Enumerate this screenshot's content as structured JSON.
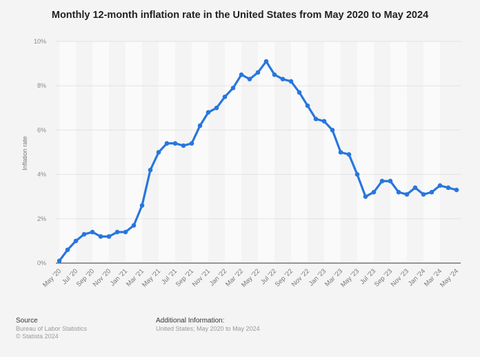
{
  "chart_data": {
    "type": "line",
    "title": "Monthly 12-month inflation rate in the United States from May 2020 to May 2024",
    "xlabel": "",
    "ylabel": "Inflation rate",
    "ylim": [
      0,
      10
    ],
    "y_ticks": [
      "0%",
      "2%",
      "4%",
      "6%",
      "8%",
      "10%"
    ],
    "grid": true,
    "color": "#2876dd",
    "x": [
      "May '20",
      "Jun '20",
      "Jul '20",
      "Aug '20",
      "Sep '20",
      "Oct '20",
      "Nov '20",
      "Dec '20",
      "Jan '21",
      "Feb '21",
      "Mar '21",
      "Apr '21",
      "May '21",
      "Jun '21",
      "Jul '21",
      "Aug '21",
      "Sep '21",
      "Oct '21",
      "Nov '21",
      "Dec '21",
      "Jan '22",
      "Feb '22",
      "Mar '22",
      "Apr '22",
      "May '22",
      "Jun '22",
      "Jul '22",
      "Aug '22",
      "Sep '22",
      "Oct '22",
      "Nov '22",
      "Dec '22",
      "Jan '23",
      "Feb '23",
      "Mar '23",
      "Apr '23",
      "May '23",
      "Jun '23",
      "Jul '23",
      "Aug '23",
      "Sep '23",
      "Oct '23",
      "Nov '23",
      "Dec '23",
      "Jan '24",
      "Feb '24",
      "Mar '24",
      "Apr '24",
      "May '24"
    ],
    "values": [
      0.1,
      0.6,
      1.0,
      1.3,
      1.4,
      1.2,
      1.2,
      1.4,
      1.4,
      1.7,
      2.6,
      4.2,
      5.0,
      5.4,
      5.4,
      5.3,
      5.4,
      6.2,
      6.8,
      7.0,
      7.5,
      7.9,
      8.5,
      8.3,
      8.6,
      9.1,
      8.5,
      8.3,
      8.2,
      7.7,
      7.1,
      6.5,
      6.4,
      6.0,
      5.0,
      4.9,
      4.0,
      3.0,
      3.2,
      3.7,
      3.7,
      3.2,
      3.1,
      3.4,
      3.1,
      3.2,
      3.5,
      3.4,
      3.3
    ]
  },
  "footer": {
    "source_heading": "Source",
    "source_lines": [
      "Bureau of Labor Statistics",
      "© Statista 2024"
    ],
    "info_heading": "Additional Information:",
    "info_text": "United States; May 2020 to May 2024"
  }
}
